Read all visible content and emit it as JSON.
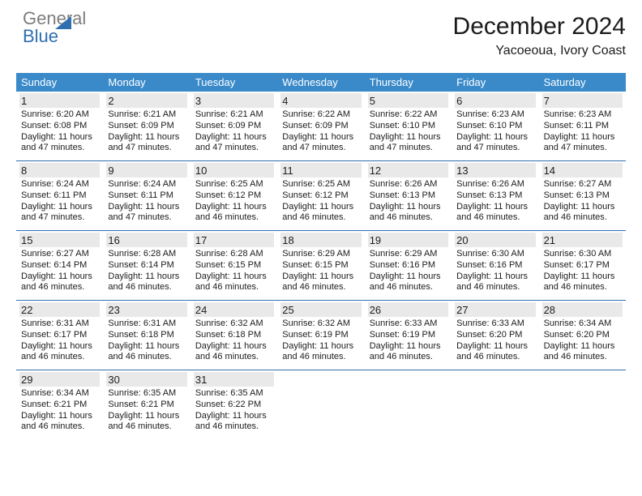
{
  "brand": {
    "line1": "General",
    "line2": "Blue"
  },
  "header": {
    "title": "December 2024",
    "location": "Yacoeoua, Ivory Coast"
  },
  "colors": {
    "dow_bg": "#3a8ac9",
    "dow_fg": "#ffffff",
    "rule": "#2f6fb0",
    "daynum_bg": "#e9e9ea",
    "text": "#1c1c1c",
    "page_bg": "#ffffff"
  },
  "calendar": {
    "type": "table",
    "days_of_week": [
      "Sunday",
      "Monday",
      "Tuesday",
      "Wednesday",
      "Thursday",
      "Friday",
      "Saturday"
    ],
    "weeks": [
      [
        {
          "n": "1",
          "sunrise": "Sunrise: 6:20 AM",
          "sunset": "Sunset: 6:08 PM",
          "daylight": "Daylight: 11 hours and 47 minutes."
        },
        {
          "n": "2",
          "sunrise": "Sunrise: 6:21 AM",
          "sunset": "Sunset: 6:09 PM",
          "daylight": "Daylight: 11 hours and 47 minutes."
        },
        {
          "n": "3",
          "sunrise": "Sunrise: 6:21 AM",
          "sunset": "Sunset: 6:09 PM",
          "daylight": "Daylight: 11 hours and 47 minutes."
        },
        {
          "n": "4",
          "sunrise": "Sunrise: 6:22 AM",
          "sunset": "Sunset: 6:09 PM",
          "daylight": "Daylight: 11 hours and 47 minutes."
        },
        {
          "n": "5",
          "sunrise": "Sunrise: 6:22 AM",
          "sunset": "Sunset: 6:10 PM",
          "daylight": "Daylight: 11 hours and 47 minutes."
        },
        {
          "n": "6",
          "sunrise": "Sunrise: 6:23 AM",
          "sunset": "Sunset: 6:10 PM",
          "daylight": "Daylight: 11 hours and 47 minutes."
        },
        {
          "n": "7",
          "sunrise": "Sunrise: 6:23 AM",
          "sunset": "Sunset: 6:11 PM",
          "daylight": "Daylight: 11 hours and 47 minutes."
        }
      ],
      [
        {
          "n": "8",
          "sunrise": "Sunrise: 6:24 AM",
          "sunset": "Sunset: 6:11 PM",
          "daylight": "Daylight: 11 hours and 47 minutes."
        },
        {
          "n": "9",
          "sunrise": "Sunrise: 6:24 AM",
          "sunset": "Sunset: 6:11 PM",
          "daylight": "Daylight: 11 hours and 47 minutes."
        },
        {
          "n": "10",
          "sunrise": "Sunrise: 6:25 AM",
          "sunset": "Sunset: 6:12 PM",
          "daylight": "Daylight: 11 hours and 46 minutes."
        },
        {
          "n": "11",
          "sunrise": "Sunrise: 6:25 AM",
          "sunset": "Sunset: 6:12 PM",
          "daylight": "Daylight: 11 hours and 46 minutes."
        },
        {
          "n": "12",
          "sunrise": "Sunrise: 6:26 AM",
          "sunset": "Sunset: 6:13 PM",
          "daylight": "Daylight: 11 hours and 46 minutes."
        },
        {
          "n": "13",
          "sunrise": "Sunrise: 6:26 AM",
          "sunset": "Sunset: 6:13 PM",
          "daylight": "Daylight: 11 hours and 46 minutes."
        },
        {
          "n": "14",
          "sunrise": "Sunrise: 6:27 AM",
          "sunset": "Sunset: 6:13 PM",
          "daylight": "Daylight: 11 hours and 46 minutes."
        }
      ],
      [
        {
          "n": "15",
          "sunrise": "Sunrise: 6:27 AM",
          "sunset": "Sunset: 6:14 PM",
          "daylight": "Daylight: 11 hours and 46 minutes."
        },
        {
          "n": "16",
          "sunrise": "Sunrise: 6:28 AM",
          "sunset": "Sunset: 6:14 PM",
          "daylight": "Daylight: 11 hours and 46 minutes."
        },
        {
          "n": "17",
          "sunrise": "Sunrise: 6:28 AM",
          "sunset": "Sunset: 6:15 PM",
          "daylight": "Daylight: 11 hours and 46 minutes."
        },
        {
          "n": "18",
          "sunrise": "Sunrise: 6:29 AM",
          "sunset": "Sunset: 6:15 PM",
          "daylight": "Daylight: 11 hours and 46 minutes."
        },
        {
          "n": "19",
          "sunrise": "Sunrise: 6:29 AM",
          "sunset": "Sunset: 6:16 PM",
          "daylight": "Daylight: 11 hours and 46 minutes."
        },
        {
          "n": "20",
          "sunrise": "Sunrise: 6:30 AM",
          "sunset": "Sunset: 6:16 PM",
          "daylight": "Daylight: 11 hours and 46 minutes."
        },
        {
          "n": "21",
          "sunrise": "Sunrise: 6:30 AM",
          "sunset": "Sunset: 6:17 PM",
          "daylight": "Daylight: 11 hours and 46 minutes."
        }
      ],
      [
        {
          "n": "22",
          "sunrise": "Sunrise: 6:31 AM",
          "sunset": "Sunset: 6:17 PM",
          "daylight": "Daylight: 11 hours and 46 minutes."
        },
        {
          "n": "23",
          "sunrise": "Sunrise: 6:31 AM",
          "sunset": "Sunset: 6:18 PM",
          "daylight": "Daylight: 11 hours and 46 minutes."
        },
        {
          "n": "24",
          "sunrise": "Sunrise: 6:32 AM",
          "sunset": "Sunset: 6:18 PM",
          "daylight": "Daylight: 11 hours and 46 minutes."
        },
        {
          "n": "25",
          "sunrise": "Sunrise: 6:32 AM",
          "sunset": "Sunset: 6:19 PM",
          "daylight": "Daylight: 11 hours and 46 minutes."
        },
        {
          "n": "26",
          "sunrise": "Sunrise: 6:33 AM",
          "sunset": "Sunset: 6:19 PM",
          "daylight": "Daylight: 11 hours and 46 minutes."
        },
        {
          "n": "27",
          "sunrise": "Sunrise: 6:33 AM",
          "sunset": "Sunset: 6:20 PM",
          "daylight": "Daylight: 11 hours and 46 minutes."
        },
        {
          "n": "28",
          "sunrise": "Sunrise: 6:34 AM",
          "sunset": "Sunset: 6:20 PM",
          "daylight": "Daylight: 11 hours and 46 minutes."
        }
      ],
      [
        {
          "n": "29",
          "sunrise": "Sunrise: 6:34 AM",
          "sunset": "Sunset: 6:21 PM",
          "daylight": "Daylight: 11 hours and 46 minutes."
        },
        {
          "n": "30",
          "sunrise": "Sunrise: 6:35 AM",
          "sunset": "Sunset: 6:21 PM",
          "daylight": "Daylight: 11 hours and 46 minutes."
        },
        {
          "n": "31",
          "sunrise": "Sunrise: 6:35 AM",
          "sunset": "Sunset: 6:22 PM",
          "daylight": "Daylight: 11 hours and 46 minutes."
        },
        null,
        null,
        null,
        null
      ]
    ]
  }
}
